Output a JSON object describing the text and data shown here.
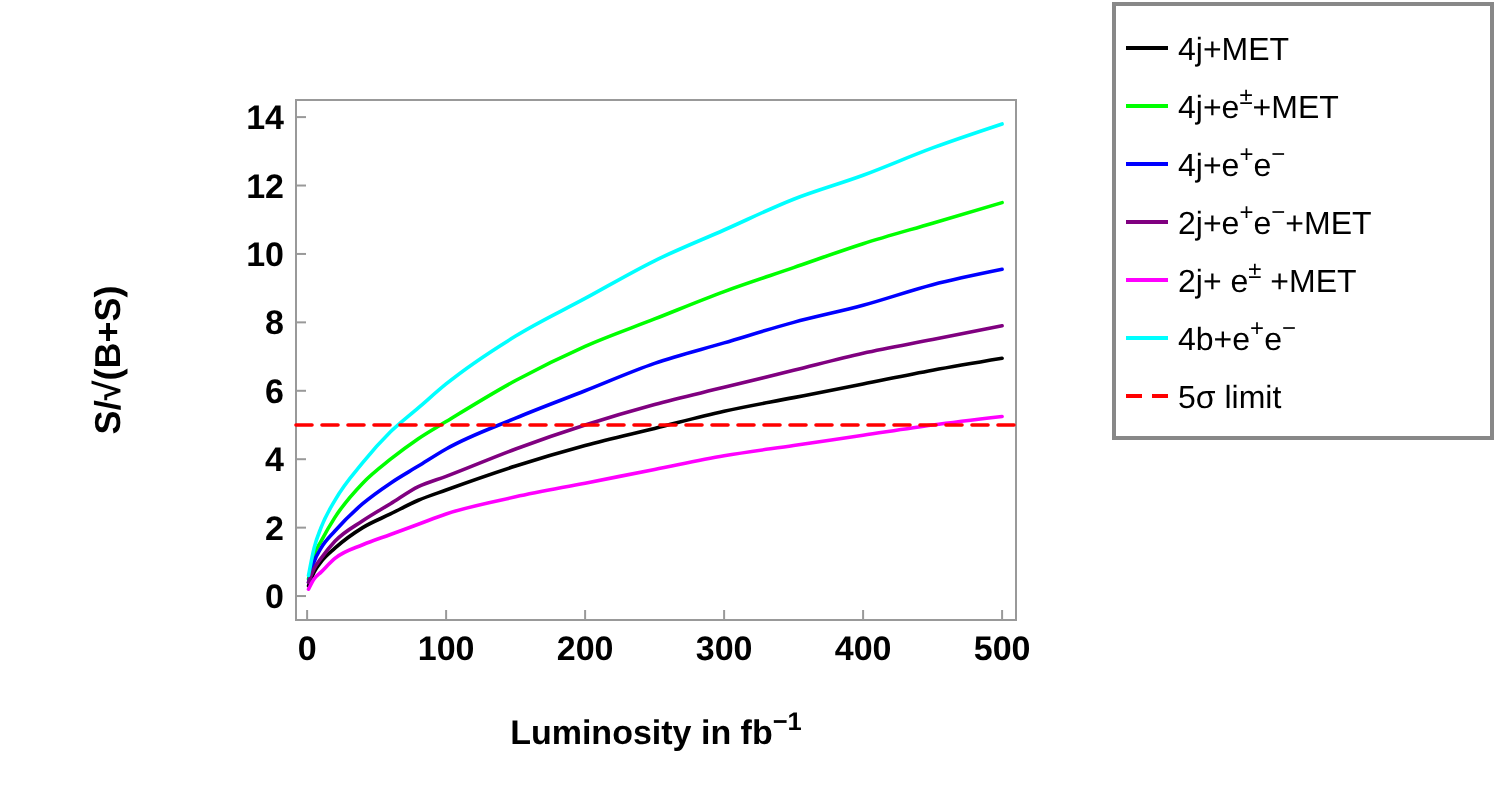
{
  "chart_data": {
    "type": "line",
    "xlabel": "Luminosity in fb$^{−1}$",
    "ylabel": "S/√(B+S)",
    "x": [
      1,
      5,
      10,
      20,
      40,
      60,
      80,
      100,
      150,
      200,
      250,
      300,
      350,
      400,
      450,
      500
    ],
    "series": [
      {
        "name": "4j+MET",
        "color": "#000000",
        "values": [
          0.3,
          0.7,
          1.0,
          1.4,
          2.0,
          2.4,
          2.8,
          3.1,
          3.8,
          4.4,
          4.9,
          5.4,
          5.8,
          6.2,
          6.6,
          6.95
        ]
      },
      {
        "name": "4j+e$^{±}$+MET",
        "color": "#00ff00",
        "values": [
          0.5,
          1.2,
          1.6,
          2.3,
          3.3,
          4.0,
          4.6,
          5.1,
          6.3,
          7.3,
          8.1,
          8.9,
          9.6,
          10.3,
          10.9,
          11.5
        ]
      },
      {
        "name": "4j+e$^{+}$e$^{−}$",
        "color": "#0000ff",
        "values": [
          0.4,
          1.0,
          1.4,
          1.9,
          2.7,
          3.3,
          3.8,
          4.3,
          5.2,
          6.0,
          6.8,
          7.4,
          8.0,
          8.5,
          9.1,
          9.55
        ]
      },
      {
        "name": "2j+e$^{+}$e$^{−}$+MET",
        "color": "#800080",
        "values": [
          0.4,
          0.8,
          1.1,
          1.6,
          2.2,
          2.7,
          3.2,
          3.5,
          4.3,
          5.0,
          5.6,
          6.1,
          6.6,
          7.1,
          7.5,
          7.9
        ]
      },
      {
        "name": "2j+ e$^{±}$ +MET",
        "color": "#ff00ff",
        "values": [
          0.2,
          0.5,
          0.7,
          1.1,
          1.5,
          1.8,
          2.1,
          2.4,
          2.9,
          3.3,
          3.7,
          4.1,
          4.4,
          4.7,
          5.0,
          5.25
        ]
      },
      {
        "name": "4b+e$^{+}$e$^{−}$",
        "color": "#00ffff",
        "values": [
          0.6,
          1.4,
          2.0,
          2.8,
          3.9,
          4.8,
          5.5,
          6.2,
          7.6,
          8.7,
          9.8,
          10.7,
          11.6,
          12.3,
          13.1,
          13.8
        ]
      },
      {
        "name": "5σ  limit",
        "color": "#ff0000",
        "line_style": "dashed",
        "x": [
          -8,
          510
        ],
        "values": [
          5,
          5
        ]
      }
    ],
    "xlim": [
      -8,
      510
    ],
    "ylim": [
      -0.7,
      14.5
    ],
    "xticks": [
      0,
      100,
      200,
      300,
      400,
      500
    ],
    "yticks": [
      0,
      2,
      4,
      6,
      8,
      10,
      12,
      14
    ],
    "legend": "right",
    "grid": false
  }
}
